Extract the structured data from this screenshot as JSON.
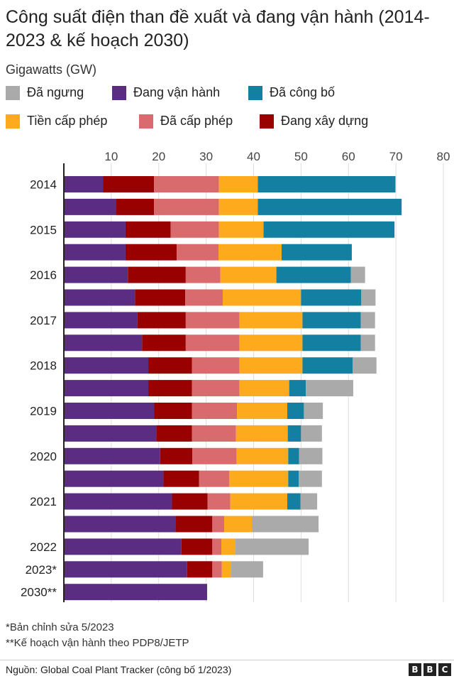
{
  "header": {
    "title": "Công suất điện than đề xuất và đang vận hành (2014-2023 & kế hoạch 2030)",
    "unit": "Gigawatts (GW)"
  },
  "legend": [
    {
      "label": "Đã ngưng",
      "color": "#aaaaaa"
    },
    {
      "label": "Đang vận hành",
      "color": "#5a2d82"
    },
    {
      "label": "Đã công bố",
      "color": "#1380a1"
    },
    {
      "label": "Tiền cấp phép",
      "color": "#fdab1d"
    },
    {
      "label": "Đã cấp phép",
      "color": "#d96a6d"
    },
    {
      "label": "Đang xây dựng",
      "color": "#990000"
    }
  ],
  "chart_data": {
    "type": "bar",
    "orientation": "horizontal",
    "stacked": true,
    "xlim": [
      0,
      80
    ],
    "x_ticks": [
      10,
      20,
      30,
      40,
      50,
      60,
      70,
      80
    ],
    "categories": [
      "2014",
      "",
      "2015",
      "",
      "2016",
      "",
      "2017",
      "",
      "2018",
      "",
      "2019",
      "",
      "2020",
      "",
      "2021",
      "",
      "2022",
      "2023*",
      "2030**"
    ],
    "series": [
      {
        "name": "Đang vận hành",
        "color": "#5a2d82",
        "values": [
          8.3,
          11.0,
          13.0,
          13.0,
          13.5,
          15.0,
          15.5,
          16.5,
          17.8,
          17.8,
          19.0,
          19.5,
          20.3,
          21.0,
          22.8,
          23.5,
          24.8,
          26.0,
          30.2
        ]
      },
      {
        "name": "Đang xây dựng",
        "color": "#990000",
        "values": [
          10.7,
          8.0,
          9.5,
          10.8,
          12.2,
          10.6,
          10.2,
          9.2,
          9.2,
          9.2,
          8.0,
          7.5,
          6.8,
          7.5,
          7.5,
          7.8,
          6.5,
          5.3,
          0
        ]
      },
      {
        "name": "Đã cấp phép",
        "color": "#d96a6d",
        "values": [
          13.7,
          13.7,
          10.2,
          8.8,
          7.3,
          7.9,
          11.3,
          11.3,
          10.0,
          10.0,
          9.5,
          9.3,
          9.3,
          6.4,
          4.8,
          2.5,
          1.9,
          2.0,
          0
        ]
      },
      {
        "name": "Tiền cấp phép",
        "color": "#fdab1d",
        "values": [
          8.2,
          8.2,
          9.4,
          13.3,
          11.8,
          16.5,
          13.3,
          13.3,
          13.3,
          10.5,
          10.6,
          10.9,
          10.9,
          12.4,
          12.0,
          5.9,
          2.9,
          1.9,
          0
        ]
      },
      {
        "name": "Đã công bố",
        "color": "#1380a1",
        "values": [
          29.0,
          30.3,
          27.6,
          14.8,
          15.7,
          12.7,
          12.3,
          12.3,
          10.6,
          3.5,
          3.5,
          2.8,
          2.3,
          2.2,
          2.8,
          0,
          0,
          0,
          0
        ]
      },
      {
        "name": "Đã ngưng",
        "color": "#aaaaaa",
        "values": [
          0,
          0,
          0,
          0,
          3.0,
          3.0,
          3.0,
          3.0,
          5.0,
          10.0,
          4.0,
          4.4,
          4.9,
          4.9,
          3.5,
          14.0,
          15.5,
          6.8,
          0
        ]
      }
    ]
  },
  "footnotes": {
    "note1": "*Bản chỉnh sửa 5/2023",
    "note2": "**Kế hoạch vận hành theo PDP8/JETP"
  },
  "source": "Nguồn: Global Coal Plant Tracker (công bố 1/2023)",
  "brand": [
    "B",
    "B",
    "C"
  ]
}
